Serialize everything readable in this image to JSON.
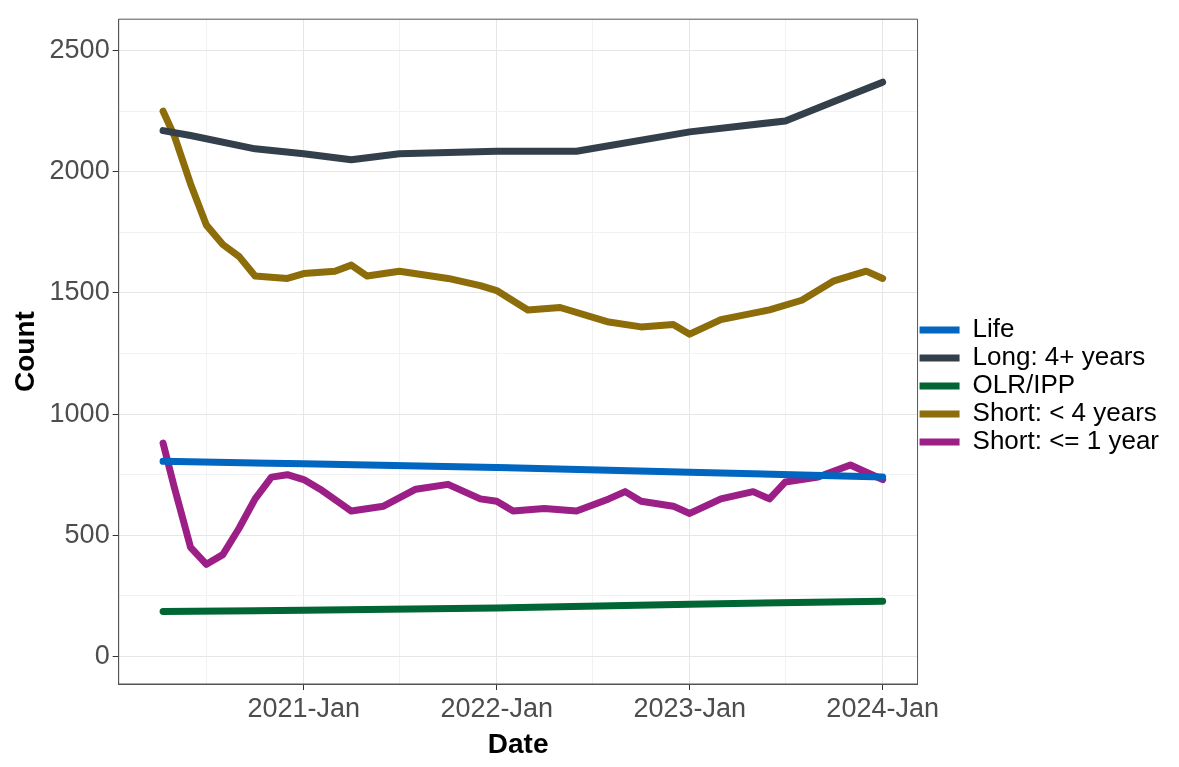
{
  "chart_data": {
    "type": "line",
    "xlabel": "Date",
    "ylabel": "Count",
    "legend": "right",
    "grid": true,
    "marker": "none",
    "line_style": "solid",
    "xlim": [
      "2020-01-17",
      "2024-03-07"
    ],
    "xticks": [
      {
        "value": "2020-07-01",
        "label": null
      },
      {
        "value": "2021-01-01",
        "label": "2021-Jan"
      },
      {
        "value": "2021-07-01",
        "label": null
      },
      {
        "value": "2022-01-01",
        "label": "2022-Jan"
      },
      {
        "value": "2022-07-01",
        "label": null
      },
      {
        "value": "2023-01-01",
        "label": "2023-Jan"
      },
      {
        "value": "2023-07-01",
        "label": null
      },
      {
        "value": "2024-01-01",
        "label": "2024-Jan"
      }
    ],
    "ylim": [
      -114,
      2630
    ],
    "yticks": [
      0,
      {
        "value": 250,
        "label": null
      },
      500,
      {
        "value": 750,
        "label": null
      },
      1000,
      {
        "value": 1250,
        "label": null
      },
      1500,
      {
        "value": 1750,
        "label": null
      },
      2000,
      {
        "value": 2250,
        "label": null
      },
      2500
    ],
    "series": [
      {
        "name": "Life",
        "color": "#0066c0",
        "x": [
          "2020-04-10",
          "2021-01-01",
          "2022-01-01",
          "2023-01-01",
          "2024-01-01"
        ],
        "values": [
          805,
          795,
          780,
          760,
          740
        ]
      },
      {
        "name": "Long: 4+ years",
        "color": "#333f4b",
        "x": [
          "2020-04-10",
          "2020-06-01",
          "2020-10-01",
          "2021-01-01",
          "2021-04-01",
          "2021-07-01",
          "2022-01-01",
          "2022-06-01",
          "2023-01-01",
          "2023-07-01",
          "2023-10-01",
          "2024-01-01"
        ],
        "values": [
          2170,
          2150,
          2095,
          2075,
          2050,
          2075,
          2085,
          2085,
          2165,
          2210,
          2290,
          2370
        ]
      },
      {
        "name": "OLR/IPP",
        "color": "#006633",
        "x": [
          "2020-04-10",
          "2021-01-01",
          "2022-01-01",
          "2023-01-01",
          "2024-01-01"
        ],
        "values": [
          185,
          190,
          200,
          215,
          228
        ]
      },
      {
        "name": "Short: < 4 years",
        "color": "#8c6d0a",
        "x": [
          "2020-04-10",
          "2020-05-01",
          "2020-06-01",
          "2020-07-01",
          "2020-08-01",
          "2020-09-01",
          "2020-10-01",
          "2020-12-01",
          "2021-01-01",
          "2021-03-01",
          "2021-04-01",
          "2021-05-01",
          "2021-07-01",
          "2021-10-01",
          "2021-12-01",
          "2022-01-01",
          "2022-03-01",
          "2022-05-01",
          "2022-08-01",
          "2022-10-01",
          "2022-12-01",
          "2023-01-01",
          "2023-03-01",
          "2023-06-01",
          "2023-08-01",
          "2023-10-01",
          "2023-12-01",
          "2024-01-01"
        ],
        "values": [
          2250,
          2150,
          1950,
          1780,
          1700,
          1650,
          1570,
          1560,
          1580,
          1590,
          1615,
          1570,
          1590,
          1560,
          1530,
          1510,
          1430,
          1440,
          1380,
          1360,
          1370,
          1330,
          1390,
          1430,
          1470,
          1550,
          1590,
          1560
        ]
      },
      {
        "name": "Short: <= 1 year",
        "color": "#9b1f86",
        "x": [
          "2020-04-10",
          "2020-05-01",
          "2020-06-01",
          "2020-07-01",
          "2020-08-01",
          "2020-09-01",
          "2020-10-01",
          "2020-11-01",
          "2020-12-01",
          "2021-01-01",
          "2021-02-01",
          "2021-04-01",
          "2021-06-01",
          "2021-08-01",
          "2021-10-01",
          "2021-12-01",
          "2022-01-01",
          "2022-02-01",
          "2022-04-01",
          "2022-06-01",
          "2022-08-01",
          "2022-09-01",
          "2022-10-01",
          "2022-12-01",
          "2023-01-01",
          "2023-03-01",
          "2023-05-01",
          "2023-06-01",
          "2023-07-01",
          "2023-09-01",
          "2023-11-01",
          "2023-12-01",
          "2024-01-01"
        ],
        "values": [
          880,
          700,
          450,
          380,
          420,
          530,
          650,
          740,
          750,
          730,
          690,
          600,
          620,
          690,
          710,
          650,
          640,
          600,
          610,
          600,
          650,
          680,
          640,
          620,
          590,
          650,
          680,
          650,
          720,
          740,
          790,
          760,
          730
        ]
      }
    ]
  }
}
